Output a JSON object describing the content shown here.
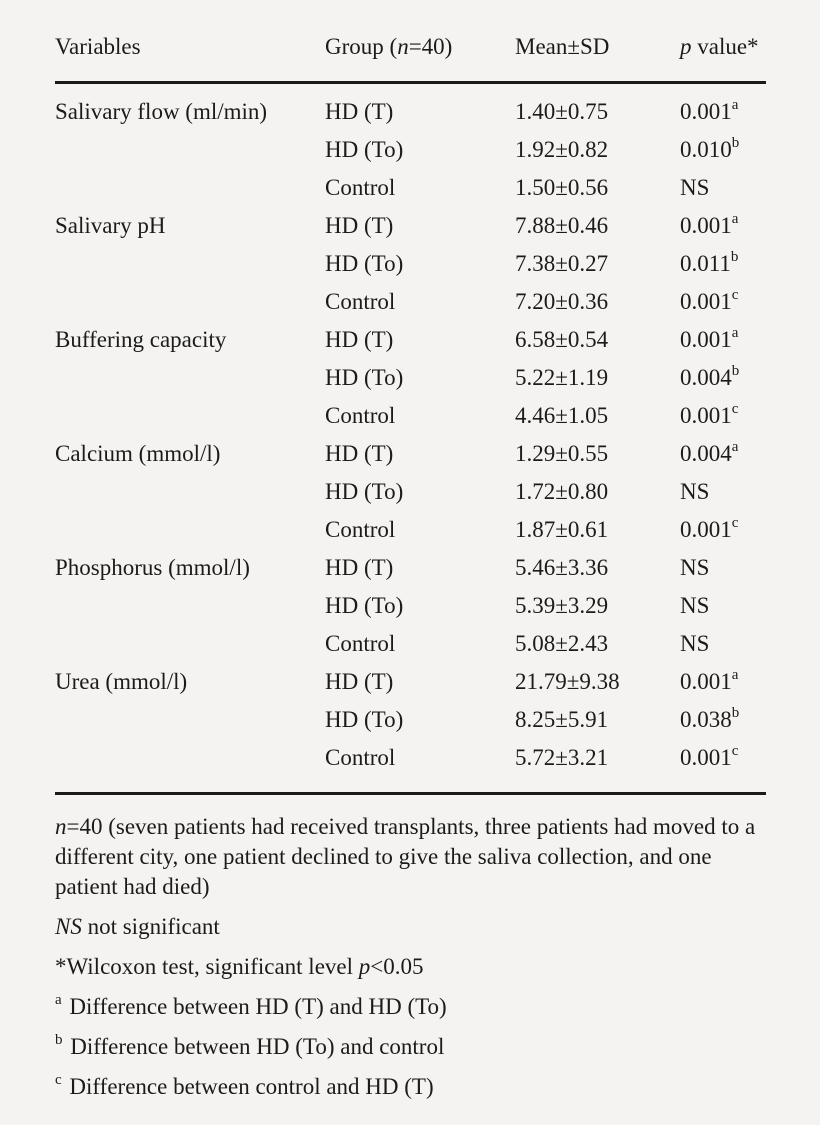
{
  "table": {
    "columns": [
      {
        "name": "variables",
        "segments": [
          {
            "style": "plain",
            "text": "Variables"
          }
        ]
      },
      {
        "name": "group",
        "segments": [
          {
            "style": "plain",
            "text": "Group ("
          },
          {
            "style": "italic",
            "text": "n"
          },
          {
            "style": "plain",
            "text": "=40)"
          }
        ]
      },
      {
        "name": "mean-sd",
        "segments": [
          {
            "style": "plain",
            "text": "Mean±SD"
          }
        ]
      },
      {
        "name": "p-value",
        "segments": [
          {
            "style": "italic",
            "text": "p"
          },
          {
            "style": "plain",
            "text": " value*"
          }
        ]
      }
    ],
    "rows": [
      {
        "variable": "Salivary flow (ml/min)",
        "entries": [
          {
            "group": "HD (T)",
            "mean": "1.40±0.75",
            "p": "0.001",
            "sup": "a"
          },
          {
            "group": "HD (To)",
            "mean": "1.92±0.82",
            "p": "0.010",
            "sup": "b"
          },
          {
            "group": "Control",
            "mean": "1.50±0.56",
            "p": "NS",
            "sup": ""
          }
        ]
      },
      {
        "variable": "Salivary pH",
        "entries": [
          {
            "group": "HD (T)",
            "mean": "7.88±0.46",
            "p": "0.001",
            "sup": "a"
          },
          {
            "group": "HD (To)",
            "mean": "7.38±0.27",
            "p": "0.011",
            "sup": "b"
          },
          {
            "group": "Control",
            "mean": "7.20±0.36",
            "p": "0.001",
            "sup": "c"
          }
        ]
      },
      {
        "variable": "Buffering capacity",
        "entries": [
          {
            "group": "HD (T)",
            "mean": "6.58±0.54",
            "p": "0.001",
            "sup": "a"
          },
          {
            "group": "HD (To)",
            "mean": "5.22±1.19",
            "p": "0.004",
            "sup": "b"
          },
          {
            "group": "Control",
            "mean": "4.46±1.05",
            "p": "0.001",
            "sup": "c"
          }
        ]
      },
      {
        "variable": "Calcium (mmol/l)",
        "entries": [
          {
            "group": "HD (T)",
            "mean": "1.29±0.55",
            "p": "0.004",
            "sup": "a"
          },
          {
            "group": "HD (To)",
            "mean": "1.72±0.80",
            "p": "NS",
            "sup": ""
          },
          {
            "group": "Control",
            "mean": "1.87±0.61",
            "p": "0.001",
            "sup": "c"
          }
        ]
      },
      {
        "variable": "Phosphorus (mmol/l)",
        "entries": [
          {
            "group": "HD (T)",
            "mean": "5.46±3.36",
            "p": "NS",
            "sup": ""
          },
          {
            "group": "HD (To)",
            "mean": "5.39±3.29",
            "p": "NS",
            "sup": ""
          },
          {
            "group": "Control",
            "mean": "5.08±2.43",
            "p": "NS",
            "sup": ""
          }
        ]
      },
      {
        "variable": "Urea (mmol/l)",
        "entries": [
          {
            "group": "HD (T)",
            "mean": "21.79±9.38",
            "p": "0.001",
            "sup": "a"
          },
          {
            "group": "HD (To)",
            "mean": "8.25±5.91",
            "p": "0.038",
            "sup": "b"
          },
          {
            "group": "Control",
            "mean": "5.72±3.21",
            "p": "0.001",
            "sup": "c"
          }
        ]
      }
    ]
  },
  "footnotes": [
    {
      "name": "footnote-n40",
      "segments": [
        {
          "style": "italic",
          "text": "n"
        },
        {
          "style": "plain",
          "text": "=40 (seven patients had received transplants, three patients had moved to a different city, one patient declined to give the saliva collection, and one patient had died)"
        }
      ]
    },
    {
      "name": "footnote-ns",
      "segments": [
        {
          "style": "italic",
          "text": "NS"
        },
        {
          "style": "plain",
          "text": " not significant"
        }
      ]
    },
    {
      "name": "footnote-wilcoxon",
      "segments": [
        {
          "style": "plain",
          "text": "*Wilcoxon test, significant level "
        },
        {
          "style": "italic",
          "text": "p"
        },
        {
          "style": "plain",
          "text": "<0.05"
        }
      ]
    },
    {
      "name": "footnote-a",
      "segments": [
        {
          "style": "sup",
          "text": "a"
        },
        {
          "style": "plain",
          "text": " Difference between HD (T) and HD (To)"
        }
      ]
    },
    {
      "name": "footnote-b",
      "segments": [
        {
          "style": "sup",
          "text": "b"
        },
        {
          "style": "plain",
          "text": " Difference between HD (To) and control"
        }
      ]
    },
    {
      "name": "footnote-c",
      "segments": [
        {
          "style": "sup",
          "text": "c"
        },
        {
          "style": "plain",
          "text": " Difference between control and HD (T)"
        }
      ]
    }
  ],
  "colors": {
    "background": "#f4f3f1",
    "text": "#1b1b1b",
    "rule": "#1a1a1a"
  }
}
